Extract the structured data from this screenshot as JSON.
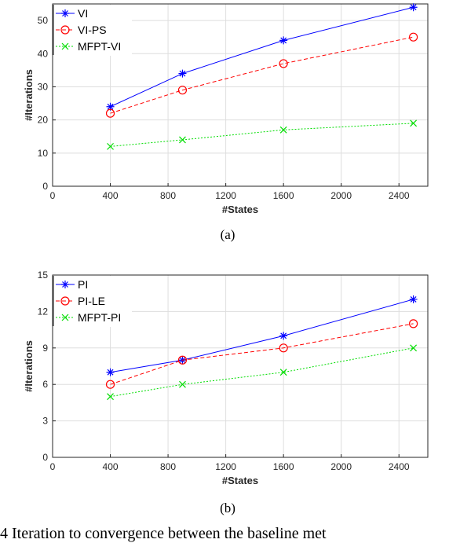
{
  "chart_data": [
    {
      "type": "line",
      "subcaption": "(a)",
      "xlabel": "#States",
      "ylabel": "#Iterations",
      "xlim": [
        0,
        2600
      ],
      "ylim": [
        0,
        55
      ],
      "xticks": [
        0,
        400,
        800,
        1200,
        1600,
        2000,
        2400
      ],
      "yticks": [
        0,
        10,
        20,
        30,
        40,
        50
      ],
      "grid": true,
      "legend_position": "top-left",
      "x": [
        400,
        900,
        1600,
        2500
      ],
      "series": [
        {
          "name": "VI",
          "values": [
            24,
            34,
            44,
            54
          ],
          "color": "#0000ff",
          "dash": "solid",
          "marker": "star"
        },
        {
          "name": "VI-PS",
          "values": [
            22,
            29,
            37,
            45
          ],
          "color": "#ff0000",
          "dash": "dashed",
          "marker": "circle"
        },
        {
          "name": "MFPT-VI",
          "values": [
            12,
            14,
            17,
            19
          ],
          "color": "#00dd00",
          "dash": "dotted",
          "marker": "x"
        }
      ]
    },
    {
      "type": "line",
      "subcaption": "(b)",
      "xlabel": "#States",
      "ylabel": "#Iterations",
      "xlim": [
        0,
        2600
      ],
      "ylim": [
        0,
        15
      ],
      "xticks": [
        0,
        400,
        800,
        1200,
        1600,
        2000,
        2400
      ],
      "yticks": [
        0,
        3,
        6,
        9,
        12,
        15
      ],
      "grid": true,
      "legend_position": "top-left",
      "x": [
        400,
        900,
        1600,
        2500
      ],
      "series": [
        {
          "name": "PI",
          "values": [
            7,
            8,
            10,
            13
          ],
          "color": "#0000ff",
          "dash": "solid",
          "marker": "star"
        },
        {
          "name": "PI-LE",
          "values": [
            6,
            8,
            9,
            11
          ],
          "color": "#ff0000",
          "dash": "dashed",
          "marker": "circle"
        },
        {
          "name": "MFPT-PI",
          "values": [
            5,
            6,
            7,
            9
          ],
          "color": "#00dd00",
          "dash": "dotted",
          "marker": "x"
        }
      ]
    }
  ],
  "caption": "4    Iteration to convergence between the baseline met"
}
